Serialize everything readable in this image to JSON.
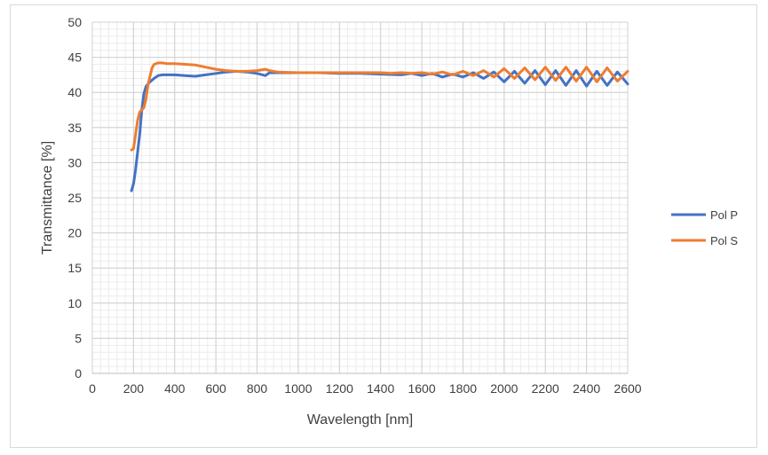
{
  "chart_data": {
    "type": "line",
    "title": "",
    "xlabel": "Wavelength [nm]",
    "ylabel": "Transmittance [%]",
    "xlim": [
      0,
      2600
    ],
    "ylim": [
      0,
      50
    ],
    "x_ticks": [
      "0",
      "200",
      "400",
      "600",
      "800",
      "1000",
      "1200",
      "1400",
      "1600",
      "1800",
      "2000",
      "2200",
      "2400",
      "2600"
    ],
    "y_ticks": [
      "0",
      "5",
      "10",
      "15",
      "20",
      "25",
      "30",
      "35",
      "40",
      "45",
      "50"
    ],
    "grid": true,
    "minor_grid": true,
    "legend_position": "right",
    "series": [
      {
        "name": "Pol P",
        "color": "#4472c4",
        "points": [
          [
            190,
            26
          ],
          [
            200,
            27
          ],
          [
            210,
            29
          ],
          [
            220,
            31.5
          ],
          [
            230,
            34
          ],
          [
            240,
            37.5
          ],
          [
            250,
            39.8
          ],
          [
            260,
            40.8
          ],
          [
            270,
            41.2
          ],
          [
            280,
            41.5
          ],
          [
            300,
            42
          ],
          [
            320,
            42.4
          ],
          [
            340,
            42.5
          ],
          [
            360,
            42.5
          ],
          [
            400,
            42.5
          ],
          [
            450,
            42.4
          ],
          [
            500,
            42.3
          ],
          [
            550,
            42.5
          ],
          [
            600,
            42.7
          ],
          [
            650,
            42.9
          ],
          [
            700,
            43
          ],
          [
            750,
            42.9
          ],
          [
            800,
            42.7
          ],
          [
            840,
            42.4
          ],
          [
            860,
            42.8
          ],
          [
            900,
            42.8
          ],
          [
            1000,
            42.8
          ],
          [
            1100,
            42.8
          ],
          [
            1200,
            42.7
          ],
          [
            1300,
            42.7
          ],
          [
            1400,
            42.6
          ],
          [
            1500,
            42.5
          ],
          [
            1550,
            42.7
          ],
          [
            1600,
            42.4
          ],
          [
            1650,
            42.7
          ],
          [
            1700,
            42.2
          ],
          [
            1750,
            42.6
          ],
          [
            1800,
            42.2
          ],
          [
            1850,
            42.8
          ],
          [
            1900,
            42.0
          ],
          [
            1950,
            42.9
          ],
          [
            2000,
            41.5
          ],
          [
            2050,
            43.0
          ],
          [
            2100,
            41.3
          ],
          [
            2150,
            43.1
          ],
          [
            2200,
            41.1
          ],
          [
            2250,
            43.1
          ],
          [
            2300,
            41.0
          ],
          [
            2350,
            43.1
          ],
          [
            2400,
            40.9
          ],
          [
            2450,
            43.0
          ],
          [
            2500,
            41.0
          ],
          [
            2550,
            42.9
          ],
          [
            2600,
            41.2
          ]
        ]
      },
      {
        "name": "Pol S",
        "color": "#ed7d31",
        "points": [
          [
            190,
            31.8
          ],
          [
            200,
            32
          ],
          [
            210,
            34
          ],
          [
            220,
            36
          ],
          [
            230,
            37.2
          ],
          [
            250,
            37.8
          ],
          [
            260,
            39
          ],
          [
            270,
            41
          ],
          [
            280,
            42.3
          ],
          [
            290,
            43.5
          ],
          [
            300,
            44
          ],
          [
            320,
            44.2
          ],
          [
            340,
            44.2
          ],
          [
            360,
            44.1
          ],
          [
            400,
            44.1
          ],
          [
            450,
            44
          ],
          [
            500,
            43.9
          ],
          [
            550,
            43.6
          ],
          [
            600,
            43.3
          ],
          [
            650,
            43.1
          ],
          [
            700,
            43
          ],
          [
            750,
            43
          ],
          [
            800,
            43.1
          ],
          [
            840,
            43.3
          ],
          [
            860,
            43.1
          ],
          [
            900,
            42.9
          ],
          [
            1000,
            42.8
          ],
          [
            1100,
            42.8
          ],
          [
            1200,
            42.8
          ],
          [
            1300,
            42.8
          ],
          [
            1400,
            42.8
          ],
          [
            1450,
            42.7
          ],
          [
            1500,
            42.8
          ],
          [
            1550,
            42.7
          ],
          [
            1600,
            42.8
          ],
          [
            1650,
            42.6
          ],
          [
            1700,
            42.9
          ],
          [
            1750,
            42.5
          ],
          [
            1800,
            43.0
          ],
          [
            1850,
            42.4
          ],
          [
            1900,
            43.1
          ],
          [
            1950,
            42.2
          ],
          [
            2000,
            43.4
          ],
          [
            2050,
            42.0
          ],
          [
            2100,
            43.5
          ],
          [
            2150,
            41.8
          ],
          [
            2200,
            43.6
          ],
          [
            2250,
            41.7
          ],
          [
            2300,
            43.6
          ],
          [
            2350,
            41.6
          ],
          [
            2400,
            43.6
          ],
          [
            2450,
            41.5
          ],
          [
            2500,
            43.5
          ],
          [
            2550,
            41.6
          ],
          [
            2600,
            43.0
          ]
        ]
      }
    ]
  }
}
